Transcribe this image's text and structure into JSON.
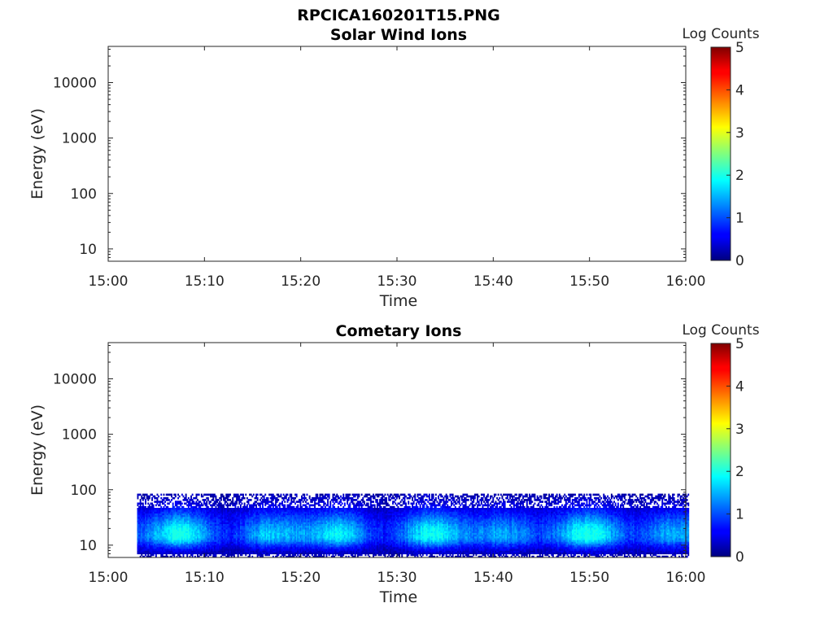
{
  "figure_title": "RPCICA160201T15.PNG",
  "chart_data": [
    {
      "type": "heatmap",
      "title": "Solar Wind Ions",
      "xlabel": "Time",
      "ylabel": "Energy (eV)",
      "x_tick_labels": [
        "15:00",
        "15:10",
        "15:20",
        "15:30",
        "15:40",
        "15:50",
        "16:00"
      ],
      "x_range": [
        "15:00",
        "16:00"
      ],
      "y_scale": "log",
      "y_tick_labels": [
        "10",
        "100",
        "1000",
        "10000"
      ],
      "y_range": [
        6,
        45000
      ],
      "colorbar": {
        "label": "Log Counts",
        "range": [
          0,
          5
        ],
        "tick_labels": [
          "0",
          "1",
          "2",
          "3",
          "4",
          "5"
        ],
        "colormap": "jet"
      },
      "data": []
    },
    {
      "type": "heatmap",
      "title": "Cometary Ions",
      "xlabel": "Time",
      "ylabel": "Energy (eV)",
      "x_tick_labels": [
        "15:00",
        "15:10",
        "15:20",
        "15:30",
        "15:40",
        "15:50",
        "16:00"
      ],
      "x_range": [
        "15:00",
        "16:00"
      ],
      "y_scale": "log",
      "y_tick_labels": [
        "10",
        "100",
        "1000",
        "10000"
      ],
      "y_range": [
        6,
        45000
      ],
      "colorbar": {
        "label": "Log Counts",
        "range": [
          0,
          5
        ],
        "tick_labels": [
          "0",
          "1",
          "2",
          "3",
          "4",
          "5"
        ],
        "colormap": "jet"
      },
      "data": {
        "time_start": "15:03",
        "time_end": "16:00",
        "energy_range_eV": [
          6,
          85
        ],
        "peak_energy_eV": 15,
        "log_counts_range": [
          0,
          2
        ]
      }
    }
  ]
}
